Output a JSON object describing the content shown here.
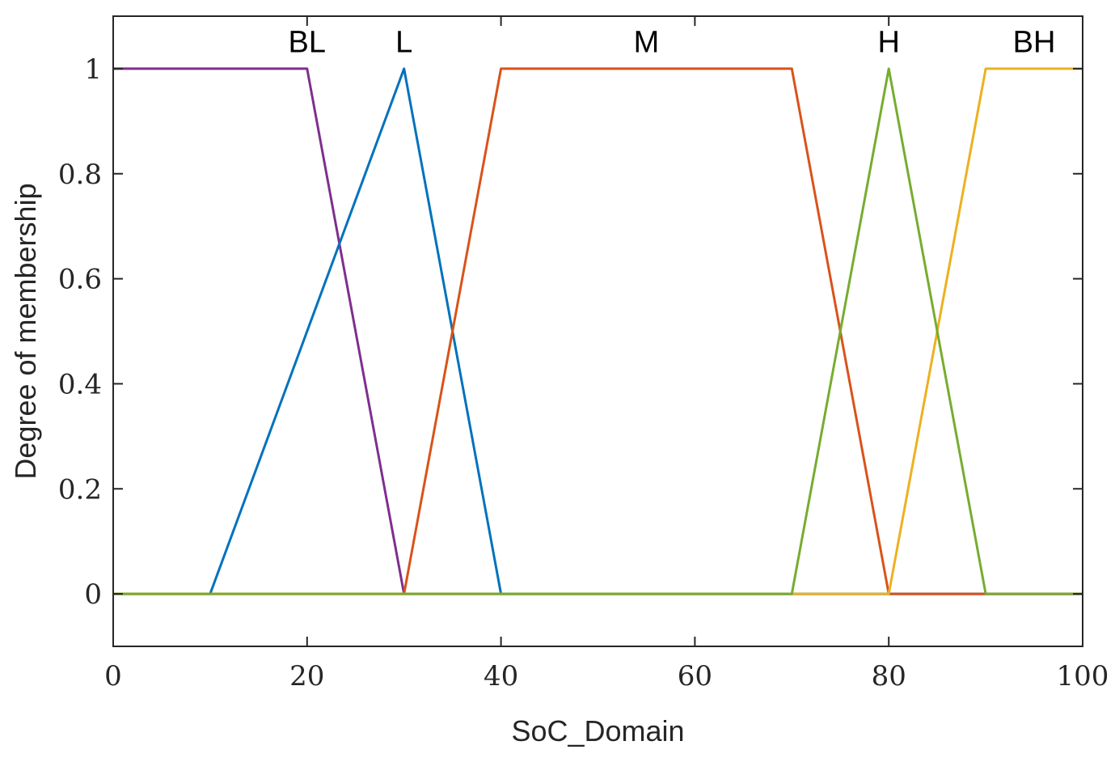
{
  "chart_data": {
    "type": "line",
    "title": "",
    "xlabel": "SoC_Domain",
    "ylabel": "Degree of membership",
    "xlim": [
      0,
      100
    ],
    "ylim": [
      -0.1,
      1.1
    ],
    "xticks": [
      0,
      20,
      40,
      60,
      80,
      100
    ],
    "yticks": [
      0,
      0.2,
      0.4,
      0.6,
      0.8,
      1
    ],
    "xtick_labels": [
      "0",
      "20",
      "40",
      "60",
      "80",
      "100"
    ],
    "ytick_labels": [
      "0",
      "0.2",
      "0.4",
      "0.6",
      "0.8",
      "1"
    ],
    "grid": false,
    "box": true,
    "series": [
      {
        "name": "BL",
        "color": "#7E2F8E",
        "x": [
          0,
          20,
          30,
          100
        ],
        "y": [
          1,
          1,
          0,
          0
        ]
      },
      {
        "name": "L",
        "color": "#0072BD",
        "x": [
          0,
          10,
          30,
          40,
          100
        ],
        "y": [
          0,
          0,
          1,
          0,
          0
        ]
      },
      {
        "name": "M",
        "color": "#D95319",
        "x": [
          0,
          30,
          40,
          70,
          80,
          100
        ],
        "y": [
          0,
          0,
          1,
          1,
          0,
          0
        ]
      },
      {
        "name": "BH",
        "color": "#EDB120",
        "x": [
          0,
          80,
          90,
          100
        ],
        "y": [
          0,
          0,
          1,
          1
        ]
      },
      {
        "name": "H",
        "color": "#77AC30",
        "x": [
          0,
          70,
          80,
          90,
          100
        ],
        "y": [
          0,
          0,
          1,
          0,
          0
        ]
      }
    ],
    "annotations": [
      {
        "text": "BL",
        "x": 20,
        "y": 1.05
      },
      {
        "text": "L",
        "x": 30,
        "y": 1.05
      },
      {
        "text": "M",
        "x": 55,
        "y": 1.05
      },
      {
        "text": "H",
        "x": 80,
        "y": 1.05
      },
      {
        "text": "BH",
        "x": 95,
        "y": 1.05
      }
    ]
  }
}
